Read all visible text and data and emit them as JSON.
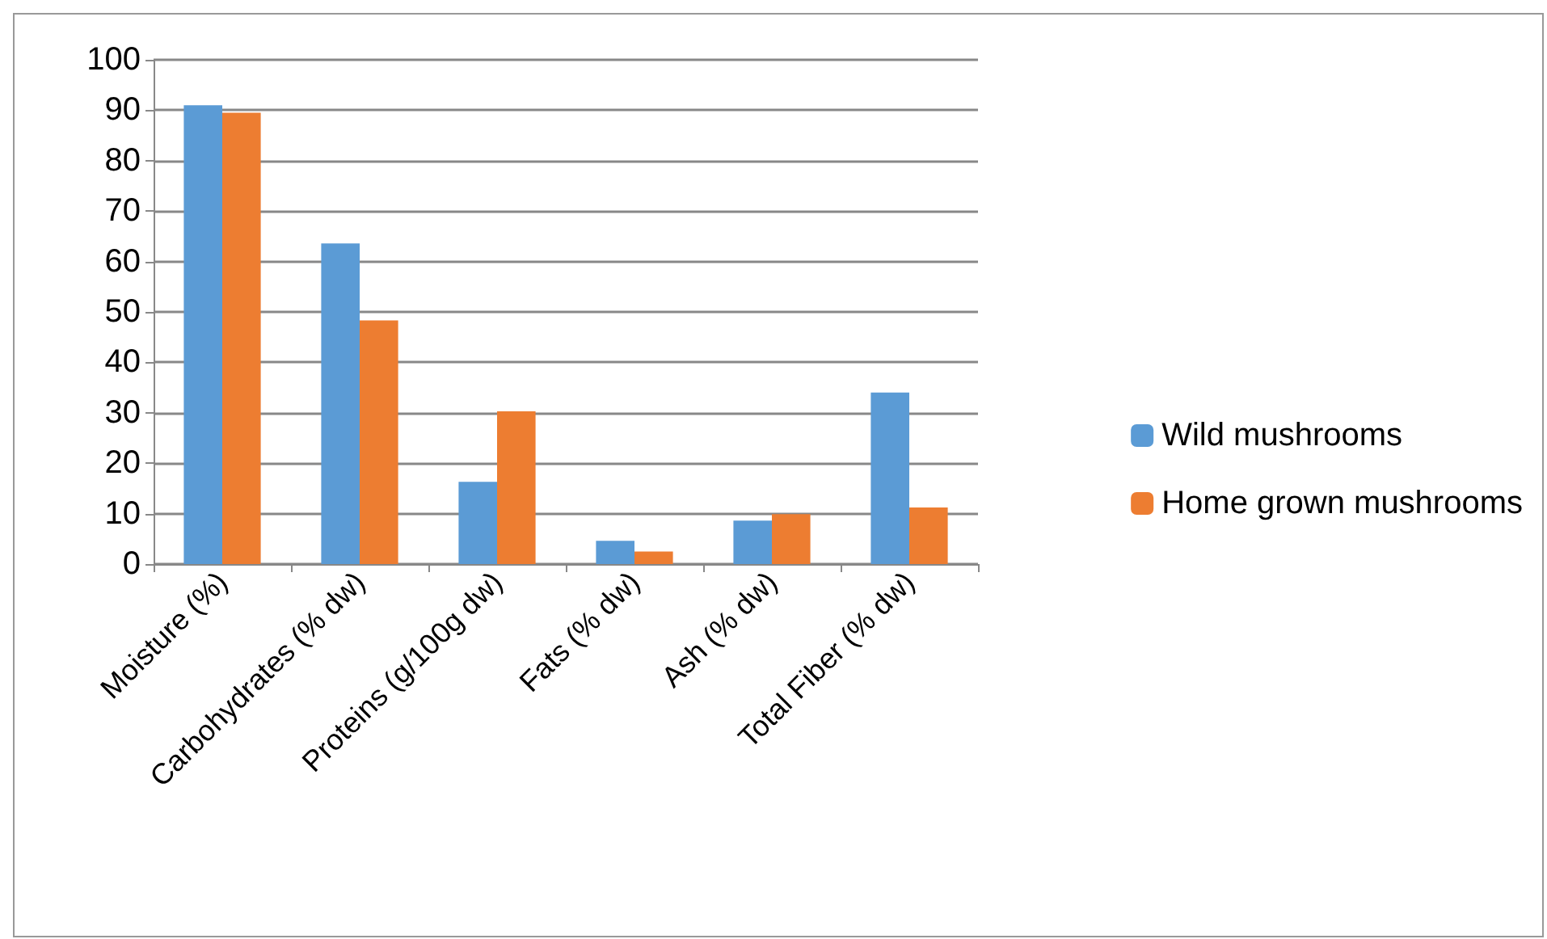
{
  "chart_data": {
    "type": "bar",
    "categories": [
      "Moisture (%)",
      "Carbohydrates (% dw)",
      "Proteins (g/100g dw)",
      "Fats (% dw)",
      "Ash (% dw)",
      "Total Fiber (% dw)"
    ],
    "series": [
      {
        "name": "Wild mushrooms",
        "color": "#5b9bd5",
        "values": [
          91,
          63.6,
          16.3,
          4.6,
          8.6,
          34
        ]
      },
      {
        "name": "Home grown mushrooms",
        "color": "#ed7d31",
        "values": [
          89.5,
          48.3,
          30.3,
          2.5,
          9.9,
          11.2
        ]
      }
    ],
    "ylim": [
      0,
      100
    ],
    "yticks": [
      0,
      10,
      20,
      30,
      40,
      50,
      60,
      70,
      80,
      90,
      100
    ],
    "grid": "y",
    "legend": "right"
  }
}
